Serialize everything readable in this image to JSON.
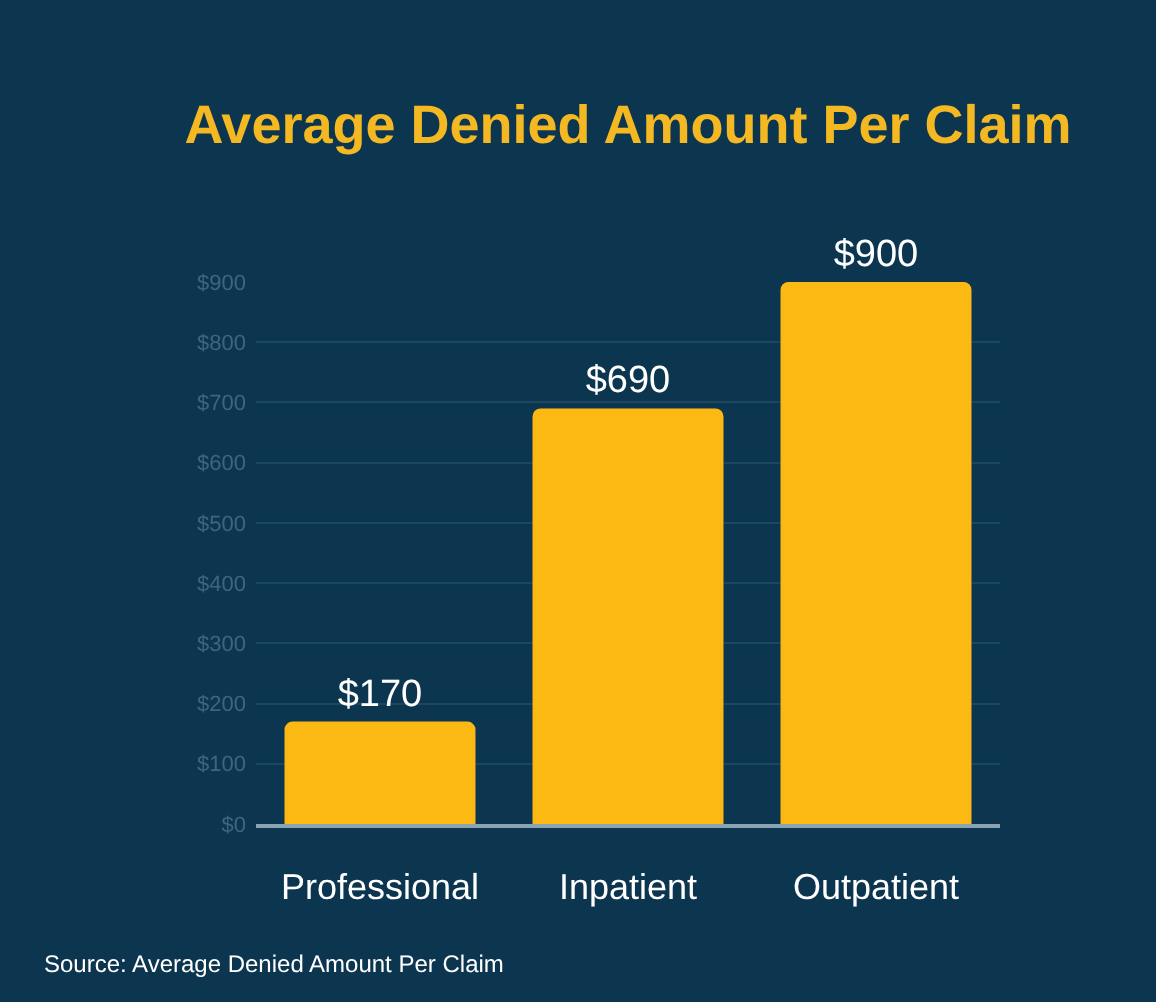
{
  "chart_data": {
    "type": "bar",
    "title": "Average Denied Amount Per Claim",
    "categories": [
      "Professional",
      "Inpatient",
      "Outpatient"
    ],
    "values": [
      170,
      690,
      900
    ],
    "color": "#fdb913",
    "value_labels": [
      "$170",
      "$690",
      "$900"
    ],
    "ylim": [
      0,
      900
    ],
    "yticks": [
      {
        "value": 0,
        "label": "$0"
      },
      {
        "value": 100,
        "label": "$100"
      },
      {
        "value": 200,
        "label": "$200"
      },
      {
        "value": 300,
        "label": "$300"
      },
      {
        "value": 400,
        "label": "$400"
      },
      {
        "value": 500,
        "label": "$500"
      },
      {
        "value": 600,
        "label": "$600"
      },
      {
        "value": 700,
        "label": "$700"
      },
      {
        "value": 800,
        "label": "$800"
      },
      {
        "value": 900,
        "label": "$900"
      }
    ],
    "grid": "y",
    "annotations": [
      "Source: Average Denied Amount Per Claim"
    ]
  }
}
